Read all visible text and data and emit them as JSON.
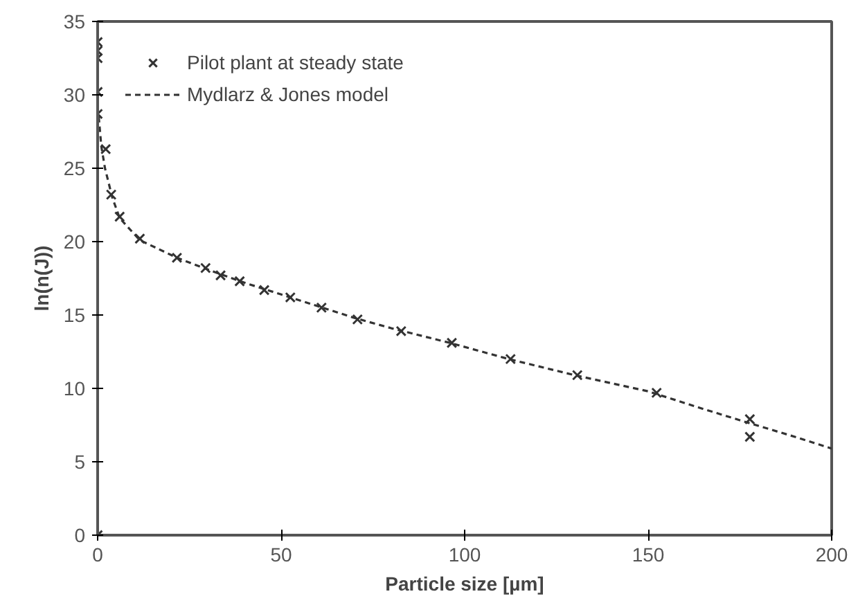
{
  "chart_data": {
    "type": "scatter",
    "xlabel": "Particle size [µm]",
    "ylabel": "ln(n(J))",
    "xlim": [
      0,
      200
    ],
    "ylim": [
      0,
      35
    ],
    "xticks": [
      0,
      50,
      100,
      150,
      200
    ],
    "yticks": [
      0,
      5,
      10,
      15,
      20,
      25,
      30,
      35
    ],
    "grid": false,
    "legend": "top left",
    "series": [
      {
        "name": "Pilot plant at steady state",
        "marker": "cross",
        "color": "#333333",
        "x": [
          0,
          0,
          0,
          0,
          0,
          0,
          2.2,
          3.7,
          6,
          11.5,
          21.6,
          29.4,
          33.5,
          38.7,
          45.4,
          52.5,
          61,
          70.8,
          82.7,
          96.5,
          112.5,
          130.7,
          152.3,
          177.7,
          177.7
        ],
        "values": [
          33.6,
          33.0,
          32.5,
          30.2,
          28.7,
          0,
          26.3,
          23.2,
          21.7,
          20.2,
          18.9,
          18.2,
          17.7,
          17.3,
          16.7,
          16.2,
          15.5,
          14.7,
          13.9,
          13.1,
          12.0,
          10.9,
          9.7,
          7.9,
          6.7
        ]
      },
      {
        "name": "Mydlarz & Jones model",
        "type": "line",
        "line_style": "dashed",
        "color": "#333333",
        "x": [
          0.3,
          1,
          2,
          4,
          6,
          11.5,
          21.6,
          30,
          40,
          50,
          60,
          70,
          80,
          96,
          112,
          130,
          150,
          165,
          178,
          190,
          200
        ],
        "values": [
          28.5,
          26.5,
          25,
          23,
          21.6,
          20.1,
          18.9,
          18.1,
          17.2,
          16.4,
          15.6,
          14.8,
          14.1,
          13.1,
          12.0,
          10.9,
          9.8,
          8.6,
          7.6,
          6.7,
          5.9
        ]
      }
    ]
  }
}
